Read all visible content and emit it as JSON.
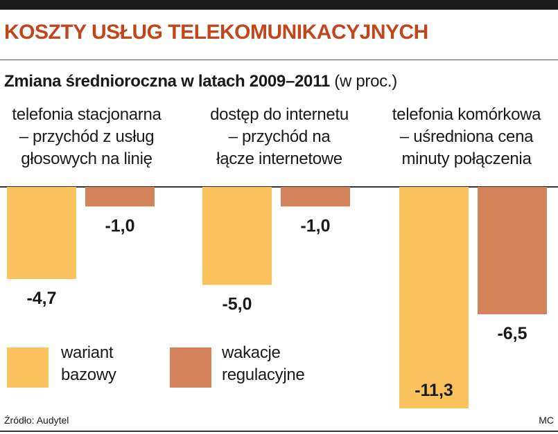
{
  "title": "KOSZTY USŁUG TELEKOMUNIKACYJNYCH",
  "subtitle_bold": "Zmiana średnioroczna w latach 2009–2011",
  "subtitle_normal": "(w proc.)",
  "source": "Źródło: Audytel",
  "credit": "MC",
  "colors": {
    "title": "#c2461c",
    "series1": "#f9c25c",
    "series2": "#d4825a"
  },
  "chart_data": {
    "type": "bar",
    "title": "KOSZTY USŁUG TELEKOMUNIKACYJNYCH",
    "subtitle": "Zmiana średnioroczna w latach 2009–2011 (w proc.)",
    "categories": [
      "telefonia stacjonarna – przychód z usług głosowych na linię",
      "dostęp do internetu – przychód na łącze internetowe",
      "telefonia komórkowa – uśredniona cena minuty połączenia"
    ],
    "category_lines": [
      [
        "telefonia stacjonarna",
        "– przychód z usług",
        "głosowych na linię"
      ],
      [
        "dostęp do internetu",
        "– przychód na",
        "łącze internetowe"
      ],
      [
        "telefonia komórkowa",
        "– uśredniona cena",
        "minuty połączenia"
      ]
    ],
    "series": [
      {
        "name": "wariant bazowy",
        "name_lines": [
          "wariant",
          "bazowy"
        ],
        "values": [
          -4.7,
          -5.0,
          -11.3
        ],
        "labels": [
          "-4,7",
          "-5,0",
          "-11,3"
        ]
      },
      {
        "name": "wakacje regulacyjne",
        "name_lines": [
          "wakacje",
          "regulacyjne"
        ],
        "values": [
          -1.0,
          -1.0,
          -6.5
        ],
        "labels": [
          "-1,0",
          "-1,0",
          "-6,5"
        ]
      }
    ],
    "ylim": [
      -11.3,
      0
    ],
    "grid": false,
    "legend": "bottom-left"
  }
}
